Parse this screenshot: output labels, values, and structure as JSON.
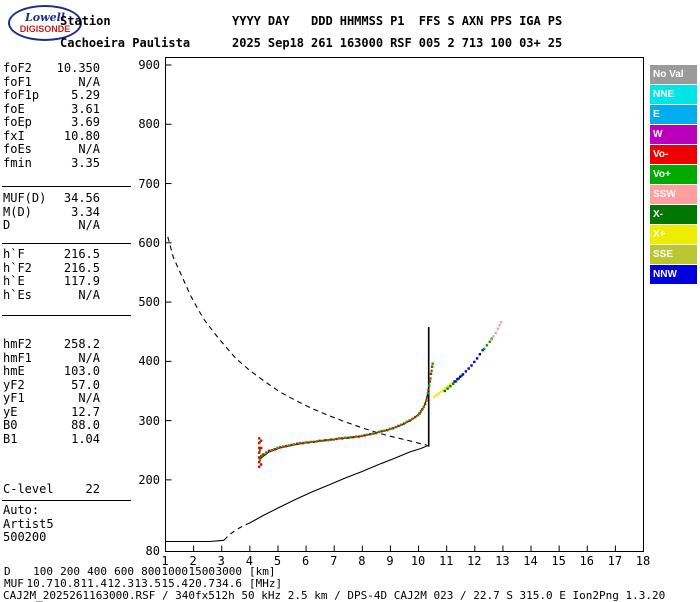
{
  "header": {
    "logo_line1": "Lowell",
    "logo_line2": "DIGISONDE",
    "station": {
      "label": "Station",
      "value": "Cachoeira Paulista"
    },
    "columns": [
      {
        "label": "YYYY",
        "value": "2025"
      },
      {
        "label": "DAY",
        "value": "Sep18"
      },
      {
        "label": "DDD",
        "value": "261"
      },
      {
        "label": "HHMMSS",
        "value": "163000"
      },
      {
        "label": "P1",
        "value": "RSF"
      },
      {
        "label": "FFS",
        "value": "005"
      },
      {
        "label": "S",
        "value": "2"
      },
      {
        "label": "AXN",
        "value": "713"
      },
      {
        "label": "PPS",
        "value": "100"
      },
      {
        "label": "IGA",
        "value": "03+"
      },
      {
        "label": "PS",
        "value": "25"
      }
    ]
  },
  "params": {
    "groups": [
      {
        "rows": [
          [
            "foF2",
            "10.350"
          ],
          [
            "foF1",
            "N/A"
          ],
          [
            "foF1p",
            "5.29"
          ],
          [
            "foE",
            "3.61"
          ],
          [
            "foEp",
            "3.69"
          ],
          [
            "fxI",
            "10.80"
          ],
          [
            "foEs",
            "N/A"
          ],
          [
            "fmin",
            "3.35"
          ]
        ]
      },
      {
        "rows": [
          [
            "MUF(D)",
            "34.56"
          ],
          [
            "M(D)",
            "3.34"
          ],
          [
            "D",
            "N/A"
          ]
        ]
      },
      {
        "rows": [
          [
            "h`F",
            "216.5"
          ],
          [
            "h`F2",
            "216.5"
          ],
          [
            "h`E",
            "117.9"
          ],
          [
            "h`Es",
            "N/A"
          ]
        ]
      },
      {
        "rows": [
          [
            "hmF2",
            "258.2"
          ],
          [
            "hmF1",
            "N/A"
          ],
          [
            "hmE",
            "103.0"
          ],
          [
            "yF2",
            "57.0"
          ],
          [
            "yF1",
            "N/A"
          ],
          [
            "yE",
            "12.7"
          ],
          [
            "B0",
            "88.0"
          ],
          [
            "B1",
            "1.04"
          ]
        ]
      },
      {
        "rows": [
          [
            "C-level",
            "22"
          ]
        ]
      },
      {
        "rows": [
          [
            "Auto:",
            ""
          ],
          [
            "Artist5",
            ""
          ],
          [
            "500200",
            ""
          ]
        ]
      }
    ]
  },
  "legend": [
    {
      "label": "No Val",
      "color": "#9A9A9A"
    },
    {
      "label": "NNE",
      "color": "#00E6E6"
    },
    {
      "label": "E",
      "color": "#00AEEF"
    },
    {
      "label": "W",
      "color": "#BB00BB"
    },
    {
      "label": "Vo-",
      "color": "#EE0000"
    },
    {
      "label": "Vo+",
      "color": "#00AA00"
    },
    {
      "label": "SSW",
      "color": "#FF9E9E"
    },
    {
      "label": "X-",
      "color": "#007700"
    },
    {
      "label": "X+",
      "color": "#EDED00"
    },
    {
      "label": "SSE",
      "color": "#B9C832"
    },
    {
      "label": "NNW",
      "color": "#0000DD"
    }
  ],
  "footer": {
    "table": {
      "rows": [
        {
          "label": "D",
          "values": [
            "100",
            "200",
            "400",
            "600",
            "800",
            "1000",
            "1500",
            "3000"
          ],
          "unit": "[km]"
        },
        {
          "label": "MUF",
          "values": [
            "10.7",
            "10.8",
            "11.4",
            "12.3",
            "13.5",
            "15.4",
            "20.7",
            "34.6"
          ],
          "unit": "[MHz]"
        }
      ]
    },
    "status": "CAJ2M_2025261163000.RSF / 340fx512h 50 kHz 2.5 km / DPS-4D CAJ2M 023 / 22.7 S 315.0 E Ion2Png 1.3.20"
  },
  "chart_data": {
    "type": "scatter",
    "title": "",
    "xlabel": "",
    "ylabel": "",
    "xlim": [
      1,
      18
    ],
    "ylim": [
      80,
      900
    ],
    "grid": false,
    "legend_position": "right",
    "x_ticks": [
      1,
      2,
      3,
      4,
      5,
      6,
      7,
      8,
      9,
      10,
      11,
      12,
      13,
      14,
      15,
      16,
      17,
      18
    ],
    "y_ticks": [
      900,
      800,
      700,
      600,
      500,
      400,
      300,
      200
    ],
    "y_origin_label": "80",
    "series": [
      {
        "name": "muf-transmission-curve",
        "style": "dashed",
        "color": "#000000",
        "points": [
          [
            1.1,
            610
          ],
          [
            1.3,
            575
          ],
          [
            1.5,
            554
          ],
          [
            1.7,
            533
          ],
          [
            1.9,
            512
          ],
          [
            2.15,
            490
          ],
          [
            2.4,
            470
          ],
          [
            2.75,
            448
          ],
          [
            3.1,
            428
          ],
          [
            3.5,
            406
          ],
          [
            4.0,
            385
          ],
          [
            4.55,
            366
          ],
          [
            5.1,
            348
          ],
          [
            5.65,
            334
          ],
          [
            6.2,
            321
          ],
          [
            6.8,
            309
          ],
          [
            7.4,
            298
          ],
          [
            8.0,
            288
          ],
          [
            8.6,
            279
          ],
          [
            9.15,
            272
          ],
          [
            9.7,
            266
          ],
          [
            10.0,
            262
          ],
          [
            10.3,
            259
          ]
        ]
      },
      {
        "name": "profile-bottom",
        "style": "solid",
        "color": "#000000",
        "points": [
          [
            1.0,
            96
          ],
          [
            1.8,
            96
          ],
          [
            2.6,
            96
          ],
          [
            3.1,
            98
          ]
        ]
      },
      {
        "name": "profile-valley",
        "style": "dashed",
        "color": "#000000",
        "points": [
          [
            3.1,
            98
          ],
          [
            3.25,
            106
          ],
          [
            3.45,
            113
          ],
          [
            3.65,
            119
          ],
          [
            3.85,
            124
          ],
          [
            4.0,
            127
          ]
        ]
      },
      {
        "name": "profile-f-region",
        "style": "solid",
        "color": "#000000",
        "points": [
          [
            4.0,
            127
          ],
          [
            4.5,
            140
          ],
          [
            5.0,
            152
          ],
          [
            5.6,
            166
          ],
          [
            6.2,
            179
          ],
          [
            6.8,
            191
          ],
          [
            7.4,
            203
          ],
          [
            8.0,
            214
          ],
          [
            8.6,
            226
          ],
          [
            9.2,
            237
          ],
          [
            9.7,
            247
          ],
          [
            10.1,
            253
          ],
          [
            10.35,
            258
          ]
        ]
      },
      {
        "name": "o-trace-fit",
        "style": "solid",
        "color": "#000000",
        "points": [
          [
            4.4,
            236
          ],
          [
            4.7,
            247
          ],
          [
            5.1,
            254
          ],
          [
            5.6,
            259
          ],
          [
            6.1,
            263
          ],
          [
            6.6,
            266
          ],
          [
            7.1,
            269
          ],
          [
            7.6,
            271
          ],
          [
            8.1,
            275
          ],
          [
            8.6,
            280
          ],
          [
            9.0,
            285
          ],
          [
            9.4,
            292
          ],
          [
            9.8,
            302
          ],
          [
            10.1,
            314
          ],
          [
            10.25,
            328
          ],
          [
            10.33,
            342
          ],
          [
            10.38,
            356
          ]
        ]
      },
      {
        "name": "o-trace-asymptote",
        "style": "solid",
        "width": 1.6,
        "color": "#000000",
        "points": [
          [
            10.38,
            256
          ],
          [
            10.38,
            458
          ]
        ]
      },
      {
        "name": "o-trace-doppler-negative",
        "style": "dots",
        "color": "#EE0000",
        "points": [
          [
            4.35,
            222
          ],
          [
            4.35,
            230
          ],
          [
            4.35,
            238
          ],
          [
            4.35,
            246
          ],
          [
            4.35,
            254
          ],
          [
            4.35,
            262
          ],
          [
            4.35,
            270
          ],
          [
            4.42,
            226
          ],
          [
            4.42,
            240
          ],
          [
            4.42,
            254
          ],
          [
            4.42,
            266
          ],
          [
            4.5,
            243
          ],
          [
            4.7,
            249
          ],
          [
            4.9,
            252
          ],
          [
            5.1,
            255
          ],
          [
            5.3,
            257
          ],
          [
            5.5,
            259
          ],
          [
            5.7,
            261
          ],
          [
            5.9,
            262
          ],
          [
            6.1,
            263
          ],
          [
            6.3,
            264
          ],
          [
            6.5,
            266
          ],
          [
            6.7,
            267
          ],
          [
            6.9,
            268
          ],
          [
            7.1,
            269
          ],
          [
            7.3,
            270
          ],
          [
            7.5,
            271
          ],
          [
            7.7,
            272
          ],
          [
            7.9,
            273
          ],
          [
            8.1,
            275
          ],
          [
            8.3,
            277
          ],
          [
            8.5,
            279
          ],
          [
            8.7,
            282
          ],
          [
            8.9,
            284
          ],
          [
            9.1,
            287
          ],
          [
            9.3,
            291
          ],
          [
            9.5,
            295
          ],
          [
            9.7,
            300
          ],
          [
            9.9,
            306
          ],
          [
            10.05,
            312
          ],
          [
            10.15,
            319
          ],
          [
            10.25,
            328
          ],
          [
            10.32,
            339
          ],
          [
            10.37,
            352
          ],
          [
            10.42,
            366
          ],
          [
            10.46,
            379
          ],
          [
            10.5,
            391
          ]
        ]
      },
      {
        "name": "o-trace-doppler-positive",
        "style": "dots",
        "color": "#00AA00",
        "points": [
          [
            4.38,
            234
          ],
          [
            4.38,
            250
          ],
          [
            4.38,
            264
          ],
          [
            4.45,
            241
          ],
          [
            4.6,
            246
          ],
          [
            4.8,
            250
          ],
          [
            5.0,
            254
          ],
          [
            5.2,
            256
          ],
          [
            5.4,
            258
          ],
          [
            5.6,
            260
          ],
          [
            5.8,
            262
          ],
          [
            6.0,
            263
          ],
          [
            6.2,
            264
          ],
          [
            6.4,
            265
          ],
          [
            6.6,
            266
          ],
          [
            6.8,
            267
          ],
          [
            7.0,
            268
          ],
          [
            7.2,
            270
          ],
          [
            7.4,
            271
          ],
          [
            7.6,
            272
          ],
          [
            7.8,
            273
          ],
          [
            8.0,
            274
          ],
          [
            8.2,
            276
          ],
          [
            8.4,
            278
          ],
          [
            8.6,
            281
          ],
          [
            8.8,
            283
          ],
          [
            9.0,
            286
          ],
          [
            9.2,
            289
          ],
          [
            9.4,
            293
          ],
          [
            9.6,
            298
          ],
          [
            9.8,
            303
          ],
          [
            10.0,
            309
          ],
          [
            10.1,
            316
          ],
          [
            10.2,
            323
          ],
          [
            10.3,
            334
          ],
          [
            10.35,
            346
          ],
          [
            10.4,
            359
          ],
          [
            10.44,
            371
          ],
          [
            10.48,
            384
          ],
          [
            10.52,
            396
          ]
        ]
      },
      {
        "name": "x-trace-xplus",
        "style": "dots",
        "color": "#EDED00",
        "points": [
          [
            10.58,
            340
          ],
          [
            10.66,
            343
          ],
          [
            10.74,
            346
          ],
          [
            10.82,
            349
          ],
          [
            10.9,
            352
          ],
          [
            10.98,
            355
          ],
          [
            11.06,
            358
          ],
          [
            11.14,
            361
          ],
          [
            11.22,
            364
          ]
        ]
      },
      {
        "name": "x-trace-xminus",
        "style": "dots",
        "color": "#007700",
        "points": [
          [
            10.95,
            350
          ],
          [
            11.05,
            354
          ],
          [
            11.15,
            358
          ],
          [
            11.25,
            362
          ],
          [
            11.35,
            366
          ],
          [
            11.45,
            371
          ],
          [
            11.55,
            376
          ]
        ]
      },
      {
        "name": "x-trace-nnw",
        "style": "dots",
        "color": "#0000DD",
        "points": [
          [
            11.3,
            366
          ],
          [
            11.4,
            370
          ],
          [
            11.5,
            374
          ],
          [
            11.6,
            378
          ],
          [
            11.7,
            383
          ],
          [
            11.8,
            388
          ],
          [
            11.9,
            393
          ],
          [
            12.0,
            399
          ],
          [
            12.1,
            405
          ],
          [
            12.2,
            412
          ],
          [
            12.3,
            419
          ]
        ]
      },
      {
        "name": "x-trace-green-tip",
        "style": "dots",
        "color": "#00AA00",
        "points": [
          [
            12.35,
            421
          ],
          [
            12.45,
            427
          ],
          [
            12.55,
            433
          ],
          [
            12.62,
            438
          ]
        ]
      },
      {
        "name": "x-trace-ssw-tip",
        "style": "dots",
        "color": "#FF9E9E",
        "points": [
          [
            12.6,
            436
          ],
          [
            12.68,
            442
          ],
          [
            12.76,
            448
          ],
          [
            12.84,
            455
          ],
          [
            12.9,
            461
          ],
          [
            12.95,
            466
          ]
        ]
      }
    ]
  }
}
